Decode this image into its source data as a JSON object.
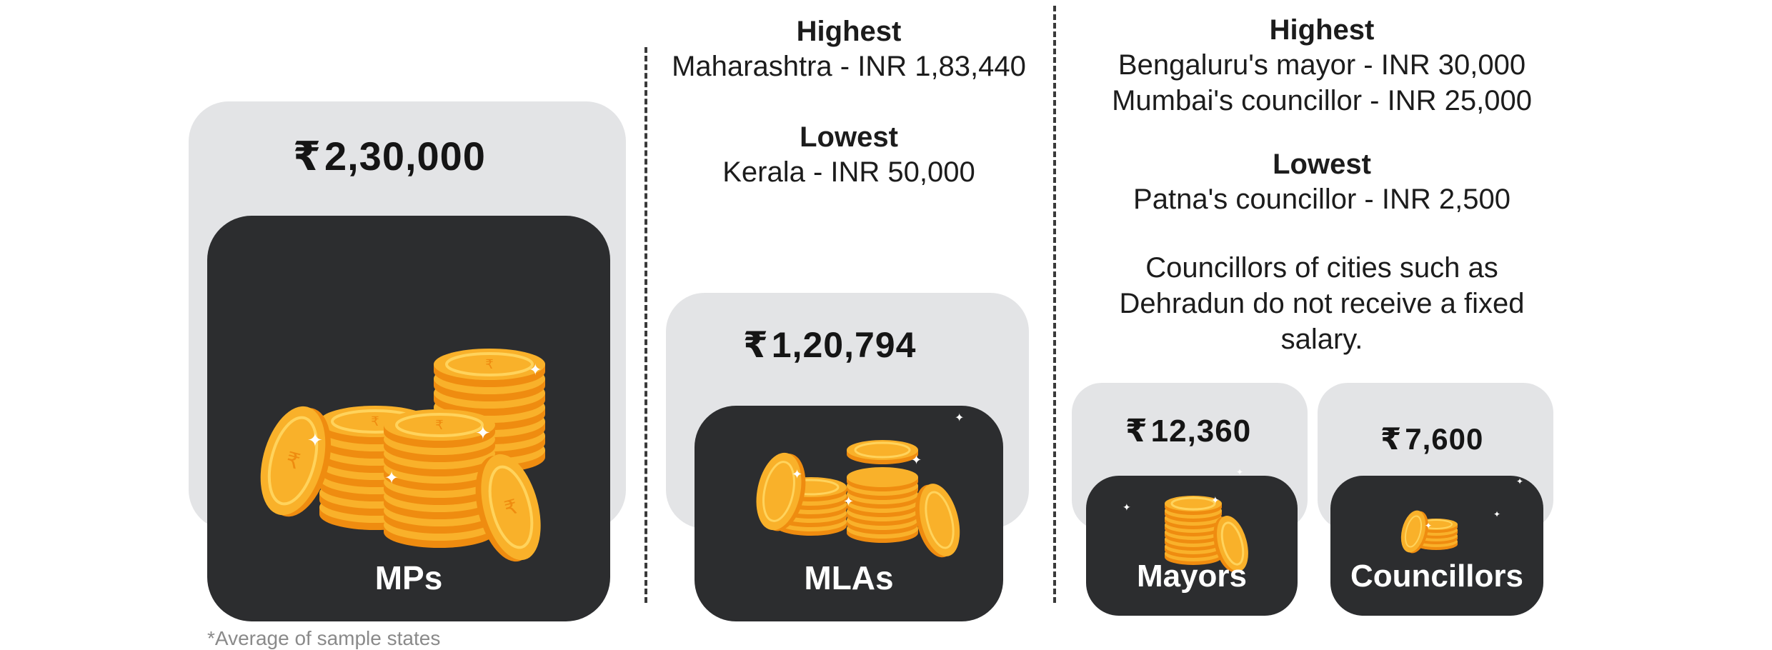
{
  "groups": {
    "mps": {
      "amount": "2,30,000",
      "label": "MPs"
    },
    "mlas": {
      "amount": "1,20,794",
      "label": "MLAs",
      "highest_heading": "Highest",
      "highest_value": "Maharashtra - INR 1,83,440",
      "lowest_heading": "Lowest",
      "lowest_value": "Kerala - INR 50,000"
    },
    "mayors": {
      "amount": "12,360",
      "label": "Mayors"
    },
    "councillors": {
      "amount": "7,600",
      "label": "Councillors"
    },
    "local_bodies": {
      "highest_heading": "Highest",
      "highest_line_1": "Bengaluru's mayor - INR 30,000",
      "highest_line_2": "Mumbai's councillor - INR 25,000",
      "lowest_heading": "Lowest",
      "lowest_value": "Patna's councillor - INR 2,500",
      "note_line_1": "Councillors of cities such as",
      "note_line_2": "Dehradun do not receive a fixed",
      "note_line_3": "salary."
    }
  },
  "currency_symbol": "₹",
  "footnote": "*Average of sample states",
  "colors": {
    "card_light": "#e3e4e6",
    "card_dark": "#2c2d2f",
    "coin_face": "#f9b12a",
    "coin_edge": "#ef8c10",
    "coin_rim": "#ffd35c"
  }
}
